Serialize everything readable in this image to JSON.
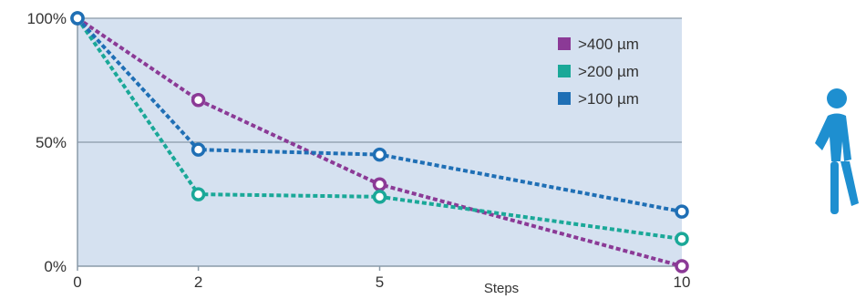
{
  "chart_data": {
    "type": "line",
    "x": [
      0,
      2,
      5,
      10
    ],
    "xlabel": "Steps",
    "ylabel": "",
    "title": "",
    "xlim": [
      0,
      10
    ],
    "ylim": [
      0,
      100
    ],
    "xticks": [
      "0",
      "2",
      "5",
      "10"
    ],
    "yticks": [
      {
        "value": 0,
        "label": "0%"
      },
      {
        "value": 50,
        "label": "50%"
      },
      {
        "value": 100,
        "label": "100%"
      }
    ],
    "grid": "horizontal",
    "legend_position": "top-right",
    "series": [
      {
        "name": ">400 µm",
        "color": "#8b3a96",
        "values": [
          100,
          67,
          33,
          0
        ]
      },
      {
        "name": ">200 µm",
        "color": "#1aa898",
        "values": [
          100,
          29,
          28,
          11
        ]
      },
      {
        "name": ">100 µm",
        "color": "#1f6fb5",
        "values": [
          100,
          47,
          45,
          22
        ]
      }
    ]
  },
  "style": {
    "plot_background": "#d5e1f0",
    "axis_color": "#8a9aa8"
  },
  "icons": {
    "side_icon": "walking-person-icon",
    "side_icon_color": "#1e8fd0"
  }
}
